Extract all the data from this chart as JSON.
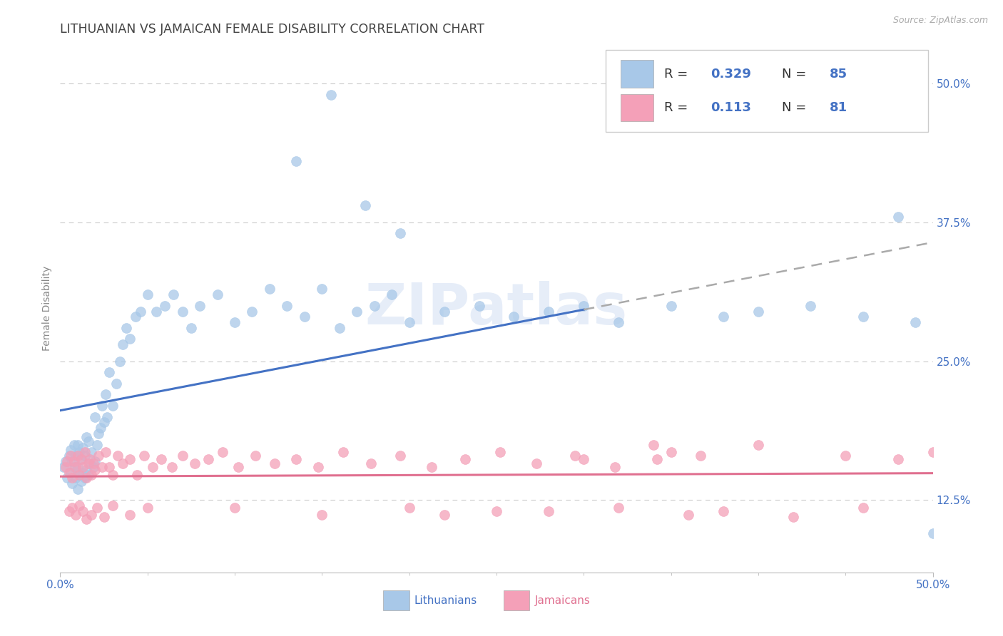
{
  "title": "LITHUANIAN VS JAMAICAN FEMALE DISABILITY CORRELATION CHART",
  "source": "Source: ZipAtlas.com",
  "ylabel": "Female Disability",
  "xlim": [
    0.0,
    0.5
  ],
  "ylim": [
    0.06,
    0.535
  ],
  "ytick_labels": [
    "12.5%",
    "25.0%",
    "37.5%",
    "50.0%"
  ],
  "ytick_positions": [
    0.125,
    0.25,
    0.375,
    0.5
  ],
  "watermark": "ZIPatlas",
  "lithuanian_color": "#A8C8E8",
  "jamaican_color": "#F4A0B8",
  "lithuanian_line_color": "#4472C4",
  "jamaican_line_color": "#E07090",
  "R_lithuanian": 0.329,
  "N_lithuanian": 85,
  "R_jamaican": 0.113,
  "N_jamaican": 81,
  "legend_color": "#4472C4",
  "background_color": "#FFFFFF",
  "grid_color": "#CCCCCC",
  "title_color": "#444444",
  "title_fontsize": 12.5,
  "axis_label_color": "#4472C4",
  "axis_label_fontsize": 11
}
